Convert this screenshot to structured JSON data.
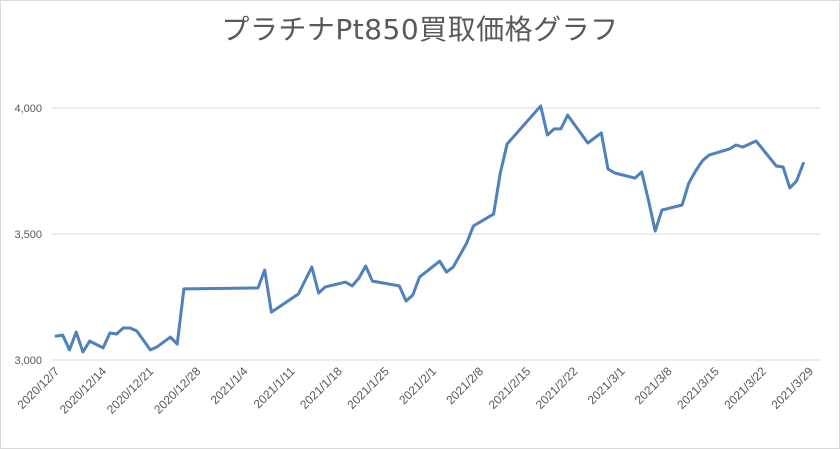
{
  "chart_data": {
    "type": "line",
    "title": "プラチナPt850買取価格グラフ",
    "xlabel": "",
    "ylabel": "",
    "ylim": [
      3000,
      4000
    ],
    "yticks": [
      3000,
      3500,
      4000
    ],
    "ytick_labels": [
      "3,000",
      "3,500",
      "4,000"
    ],
    "grid": true,
    "legend": null,
    "xtick_labels": [
      "2020/12/7",
      "2020/12/14",
      "2020/12/21",
      "2020/12/28",
      "2021/1/4",
      "2021/1/11",
      "2021/1/18",
      "2021/1/25",
      "2021/2/1",
      "2021/2/8",
      "2021/2/15",
      "2021/2/22",
      "2021/3/1",
      "2021/3/8",
      "2021/3/15",
      "2021/3/22",
      "2021/3/29"
    ],
    "series": [
      {
        "name": "Pt850",
        "color": "#4f81bd",
        "x": [
          "2020/12/7",
          "2020/12/8",
          "2020/12/9",
          "2020/12/10",
          "2020/12/11",
          "2020/12/12",
          "2020/12/14",
          "2020/12/15",
          "2020/12/16",
          "2020/12/17",
          "2020/12/18",
          "2020/12/19",
          "2020/12/21",
          "2020/12/22",
          "2020/12/24",
          "2020/12/25",
          "2020/12/26",
          "2021/1/6",
          "2021/1/7",
          "2021/1/8",
          "2021/1/12",
          "2021/1/14",
          "2021/1/15",
          "2021/1/16",
          "2021/1/19",
          "2021/1/20",
          "2021/1/21",
          "2021/1/22",
          "2021/1/23",
          "2021/1/27",
          "2021/1/28",
          "2021/1/29",
          "2021/1/30",
          "2021/2/2",
          "2021/2/3",
          "2021/2/4",
          "2021/2/6",
          "2021/2/7",
          "2021/2/10",
          "2021/2/11",
          "2021/2/12",
          "2021/2/17",
          "2021/2/18",
          "2021/2/19",
          "2021/2/20",
          "2021/2/21",
          "2021/2/24",
          "2021/2/26",
          "2021/2/27",
          "2021/2/28",
          "2021/3/3",
          "2021/3/4",
          "2021/3/5",
          "2021/3/6",
          "2021/3/7",
          "2021/3/10",
          "2021/3/11",
          "2021/3/12",
          "2021/3/13",
          "2021/3/14",
          "2021/3/17",
          "2021/3/18",
          "2021/3/19",
          "2021/3/21",
          "2021/3/24",
          "2021/3/25",
          "2021/3/26",
          "2021/3/27",
          "2021/3/28"
        ],
        "values": [
          3095,
          3099,
          3040,
          3111,
          3032,
          3075,
          3048,
          3107,
          3103,
          3127,
          3127,
          3115,
          3040,
          3052,
          3091,
          3063,
          3282,
          3286,
          3357,
          3190,
          3262,
          3369,
          3266,
          3290,
          3309,
          3294,
          3325,
          3373,
          3313,
          3294,
          3234,
          3258,
          3329,
          3392,
          3349,
          3369,
          3464,
          3532,
          3579,
          3742,
          3857,
          4008,
          3893,
          3917,
          3917,
          3972,
          3861,
          3901,
          3758,
          3742,
          3722,
          3746,
          3635,
          3512,
          3595,
          3615,
          3702,
          3750,
          3790,
          3813,
          3837,
          3853,
          3845,
          3869,
          3770,
          3766,
          3683,
          3710,
          3780
        ]
      }
    ]
  }
}
